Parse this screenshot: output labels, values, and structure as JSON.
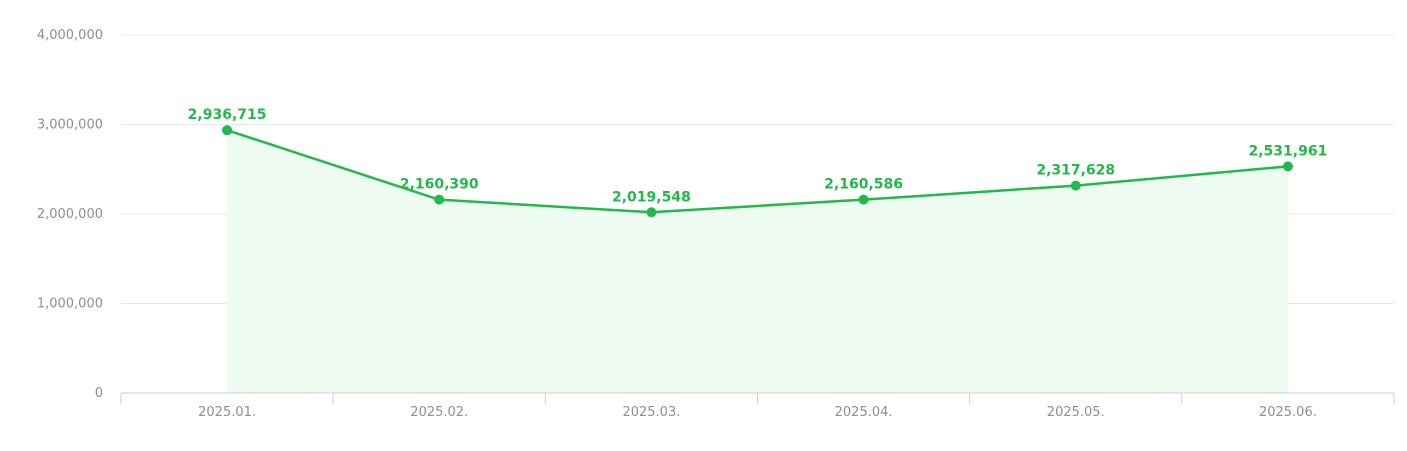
{
  "chart_data": {
    "type": "area",
    "title": "",
    "xlabel": "",
    "ylabel": "",
    "categories": [
      "2025.01.",
      "2025.02.",
      "2025.03.",
      "2025.04.",
      "2025.05.",
      "2025.06."
    ],
    "series": [
      {
        "values": [
          2936715,
          2160390,
          2019548,
          2160586,
          2317628,
          2531961
        ]
      }
    ],
    "data_labels": [
      "2,936,715",
      "2,160,390",
      "2,019,548",
      "2,160,586",
      "2,317,628",
      "2,531,961"
    ],
    "yticks": [
      0,
      1000000,
      2000000,
      3000000,
      4000000
    ],
    "ytick_labels": [
      "0",
      "1,000,000",
      "2,000,000",
      "3,000,000",
      "4,000,000"
    ],
    "ylim": [
      0,
      4000000
    ],
    "grid": true,
    "legend": "none",
    "colors": {
      "line": "#22b84a",
      "fill": "#eefbf0",
      "label": "#22b84a"
    }
  }
}
